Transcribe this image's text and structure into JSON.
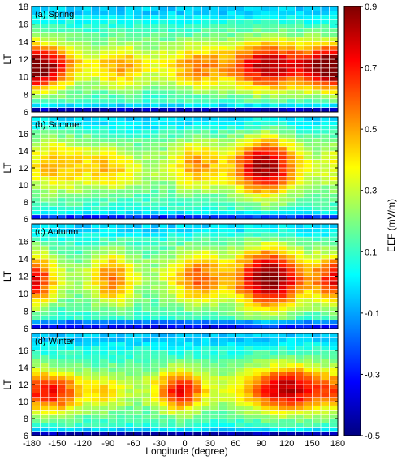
{
  "chart_data": {
    "type": "heatmap",
    "xlabel": "Longitude (degree)",
    "ylabel": "LT",
    "colorbar_label": "EEF (mV/m)",
    "xlim": [
      -180,
      180
    ],
    "ylim": [
      6,
      18
    ],
    "x_ticks": [
      "-180",
      "-150",
      "-120",
      "-90",
      "-60",
      "-30",
      "0",
      "30",
      "60",
      "90",
      "120",
      "150",
      "180"
    ],
    "y_ticks_spring": [
      "6",
      "8",
      "10",
      "12",
      "14",
      "16",
      "18"
    ],
    "y_ticks_other": [
      "6",
      "8",
      "10",
      "12",
      "14",
      "16"
    ],
    "colorbar": {
      "min": -0.5,
      "max": 0.9,
      "ticks": [
        "0.9",
        "0.7",
        "0.5",
        "0.3",
        "0.1",
        "-0.1",
        "-0.3",
        "-0.5"
      ],
      "colors": [
        "#00007f",
        "#0000ff",
        "#007fff",
        "#00ffff",
        "#7fff7f",
        "#ffff00",
        "#ff7f00",
        "#ff0000",
        "#7f0000"
      ]
    },
    "grid": {
      "x_bin_deg": 10,
      "y_bin_hours": 0.5,
      "columns": 36,
      "rows": 24,
      "style": "white cell borders"
    },
    "panels": [
      {
        "label": "(a) Spring",
        "features": "max ~0.75 near LT 10-12 at longitudes -180 to -150 and 80 to 120; ~0.5 near -90 to -60 and 0 to 30; minimum about -0.5 at LT 6",
        "blobs": [
          {
            "lon": -165,
            "lt": 11.0,
            "amp": 0.55,
            "sx": 25,
            "sy": 1.8
          },
          {
            "lon": -75,
            "lt": 11.0,
            "amp": 0.25,
            "sx": 20,
            "sy": 1.8
          },
          {
            "lon": 15,
            "lt": 11.0,
            "amp": 0.28,
            "sx": 25,
            "sy": 1.8
          },
          {
            "lon": 100,
            "lt": 11.2,
            "amp": 0.58,
            "sx": 32,
            "sy": 2.0
          },
          {
            "lon": 165,
            "lt": 11.0,
            "amp": 0.4,
            "sx": 20,
            "sy": 1.8
          }
        ],
        "base": {
          "mean": 0.22,
          "lt_peak": 11.5,
          "lt_width": 3.2,
          "dawn": -0.5,
          "dawn_lt": 6.2
        }
      },
      {
        "label": "(b) Summer",
        "features": "max ~0.8 near LT 12 around longitude 90-100; ~0.45 near -90 and 0 to 30; minimum about -0.3 at LT 6 near 30 to 60",
        "blobs": [
          {
            "lon": -150,
            "lt": 12.5,
            "amp": 0.25,
            "sx": 30,
            "sy": 2.5
          },
          {
            "lon": -85,
            "lt": 12.0,
            "amp": 0.22,
            "sx": 20,
            "sy": 2.0
          },
          {
            "lon": 15,
            "lt": 12.5,
            "amp": 0.3,
            "sx": 22,
            "sy": 2.2
          },
          {
            "lon": 95,
            "lt": 12.2,
            "amp": 0.65,
            "sx": 25,
            "sy": 2.6
          }
        ],
        "base": {
          "mean": 0.18,
          "lt_peak": 12.0,
          "lt_width": 3.5,
          "dawn": -0.35,
          "dawn_lt": 6.2
        }
      },
      {
        "label": "(c) Autumn",
        "features": "max ~0.85 near LT 11-12 around longitude 90-110; ~0.55 near -90, 15 and -180; minimum about -0.4 at LT 6-7 near 30 to 60",
        "blobs": [
          {
            "lon": -175,
            "lt": 11.5,
            "amp": 0.38,
            "sx": 18,
            "sy": 2.2
          },
          {
            "lon": -85,
            "lt": 11.8,
            "amp": 0.35,
            "sx": 18,
            "sy": 2.4
          },
          {
            "lon": 15,
            "lt": 12.0,
            "amp": 0.38,
            "sx": 22,
            "sy": 2.4
          },
          {
            "lon": 100,
            "lt": 11.8,
            "amp": 0.72,
            "sx": 28,
            "sy": 2.6
          },
          {
            "lon": 170,
            "lt": 12.0,
            "amp": 0.2,
            "sx": 18,
            "sy": 2.0
          }
        ],
        "base": {
          "mean": 0.17,
          "lt_peak": 11.8,
          "lt_width": 3.5,
          "dawn": -0.45,
          "dawn_lt": 6.4
        }
      },
      {
        "label": "(d) Winter",
        "features": "max ~0.75 near LT 11-12 around longitudes 100-130; ~0.6 near -150 and 0; minimum about -0.45 at LT 6",
        "blobs": [
          {
            "lon": -155,
            "lt": 11.0,
            "amp": 0.45,
            "sx": 25,
            "sy": 1.8
          },
          {
            "lon": -5,
            "lt": 11.2,
            "amp": 0.48,
            "sx": 20,
            "sy": 1.8
          },
          {
            "lon": 120,
            "lt": 11.5,
            "amp": 0.58,
            "sx": 35,
            "sy": 2.0
          },
          {
            "lon": -90,
            "lt": 11.0,
            "amp": 0.18,
            "sx": 15,
            "sy": 1.5
          }
        ],
        "base": {
          "mean": 0.2,
          "lt_peak": 11.5,
          "lt_width": 3.0,
          "dawn": -0.5,
          "dawn_lt": 6.2
        }
      }
    ]
  }
}
